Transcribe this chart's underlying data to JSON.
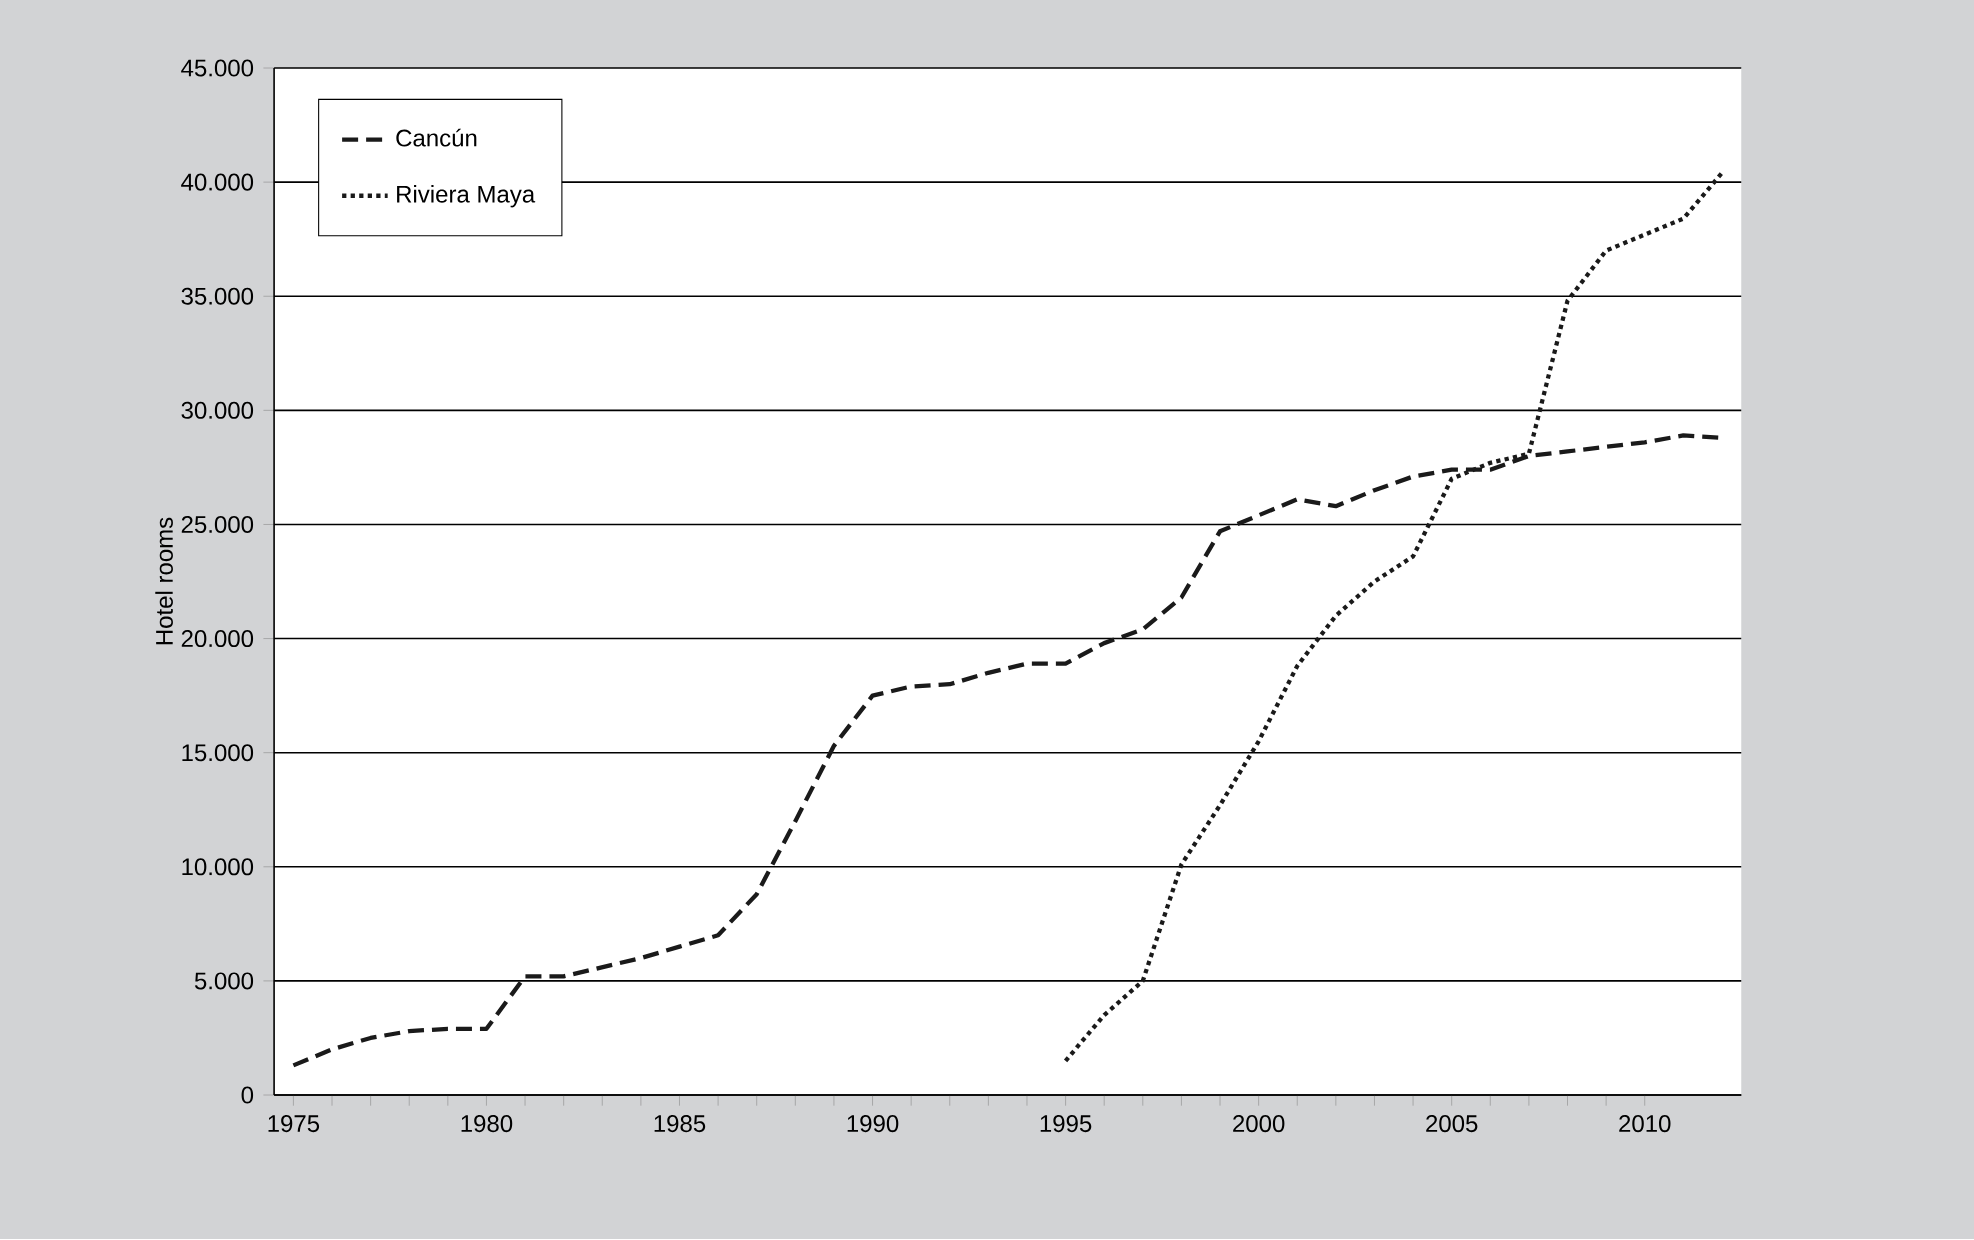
{
  "chart_data": {
    "type": "line",
    "ylabel": "Hotel rooms",
    "x": [
      1975,
      1976,
      1977,
      1978,
      1979,
      1980,
      1981,
      1982,
      1983,
      1984,
      1985,
      1986,
      1987,
      1988,
      1989,
      1990,
      1991,
      1992,
      1993,
      1994,
      1995,
      1996,
      1997,
      1998,
      1999,
      2000,
      2001,
      2002,
      2003,
      2004,
      2005,
      2006,
      2007,
      2008,
      2009,
      2010,
      2011,
      2012
    ],
    "series": [
      {
        "name": "Cancún",
        "color": "#1a1a1a",
        "line_style": "dashed",
        "values": [
          1300,
          2000,
          2500,
          2800,
          2900,
          2900,
          5200,
          5200,
          5600,
          6000,
          6500,
          7000,
          8800,
          12000,
          15300,
          17500,
          17900,
          18000,
          18500,
          18900,
          18900,
          19800,
          20400,
          21800,
          24700,
          25400,
          26100,
          25800,
          26500,
          27100,
          27400,
          27400,
          28000,
          28200,
          28400,
          28600,
          28900,
          28800
        ]
      },
      {
        "name": "Riviera Maya",
        "color": "#1a1a1a",
        "line_style": "dotted",
        "x": [
          1995,
          1996,
          1997,
          1998,
          1999,
          2000,
          2001,
          2002,
          2003,
          2004,
          2005,
          2006,
          2007,
          2008,
          2009,
          2010,
          2011,
          2012
        ],
        "values": [
          1500,
          3500,
          5000,
          10100,
          12700,
          15500,
          18800,
          21000,
          22500,
          23600,
          27000,
          27700,
          28100,
          34800,
          37000,
          37700,
          38400,
          40400
        ]
      }
    ],
    "xlim": [
      1974.5,
      2012.5
    ],
    "xticks": [
      1975,
      1980,
      1985,
      1990,
      1995,
      2000,
      2005,
      2010
    ],
    "ylim": [
      0,
      45000
    ],
    "yticks": [
      {
        "value": 0,
        "label": "0"
      },
      {
        "value": 5000,
        "label": "5.000"
      },
      {
        "value": 10000,
        "label": "10.000"
      },
      {
        "value": 15000,
        "label": "15.000"
      },
      {
        "value": 20000,
        "label": "20.000"
      },
      {
        "value": 25000,
        "label": "25.000"
      },
      {
        "value": 30000,
        "label": "30.000"
      },
      {
        "value": 35000,
        "label": "35.000"
      },
      {
        "value": 40000,
        "label": "40.000"
      },
      {
        "value": 45000,
        "label": "45.000"
      }
    ],
    "grid": "y",
    "legend": "top left",
    "marker": "none"
  }
}
